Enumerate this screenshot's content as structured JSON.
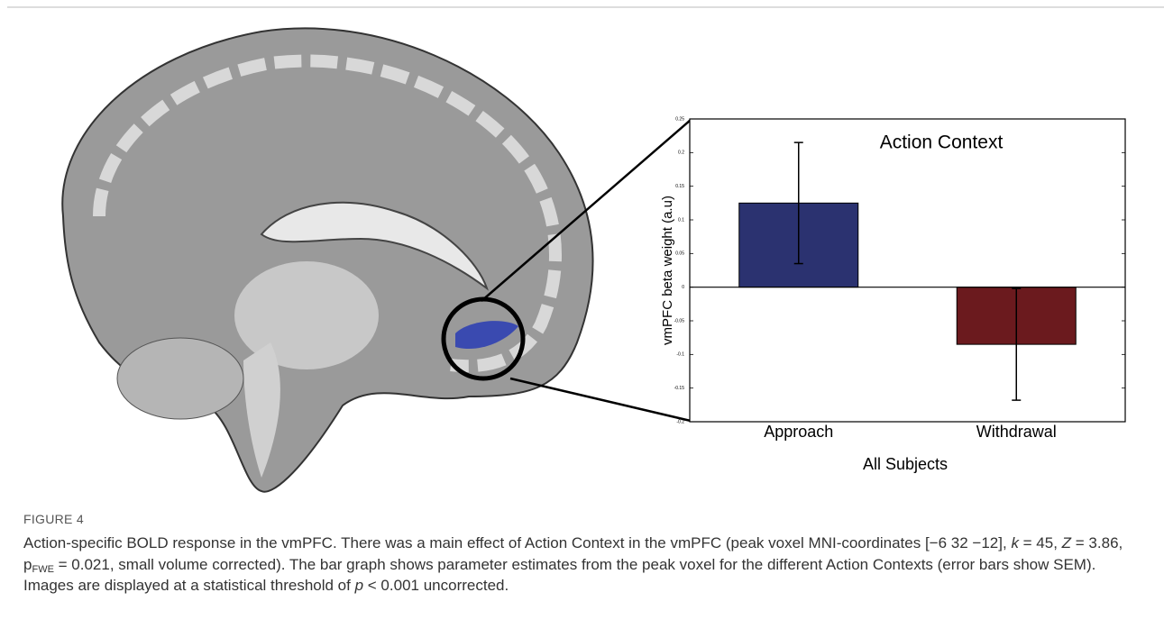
{
  "chart_data": {
    "type": "bar",
    "title": "Action Context",
    "ylabel": "vmPFC beta weight (a.u)",
    "xlabel": "All Subjects",
    "categories": [
      "Approach",
      "Withdrawal"
    ],
    "values": [
      0.125,
      -0.085
    ],
    "errors": [
      0.09,
      0.083
    ],
    "colors": [
      "#2b3270",
      "#6b1a1e"
    ],
    "ylim": [
      -0.2,
      0.25
    ],
    "yticks": [
      -0.2,
      -0.15,
      -0.1,
      -0.05,
      0,
      0.05,
      0.1,
      0.15,
      0.2,
      0.25
    ]
  },
  "figure": {
    "label": "FIGURE 4",
    "caption": [
      {
        "text": "Action-specific BOLD response in the vmPFC. There was a main effect of Action Context in the vmPFC (peak voxel MNI-coordinates [−6 32 −12], "
      },
      {
        "text": "k",
        "italic": true
      },
      {
        "text": " = 45, "
      },
      {
        "text": "Z",
        "italic": true
      },
      {
        "text": " = 3.86, p"
      },
      {
        "text": "FWE",
        "sub": true
      },
      {
        "text": " = 0.021, small volume corrected). The bar graph shows parameter estimates from the peak voxel for the different Action Contexts (error bars show SEM). Images are displayed at a statistical threshold of "
      },
      {
        "text": "p",
        "italic": true
      },
      {
        "text": " < 0.001 uncorrected."
      }
    ]
  }
}
